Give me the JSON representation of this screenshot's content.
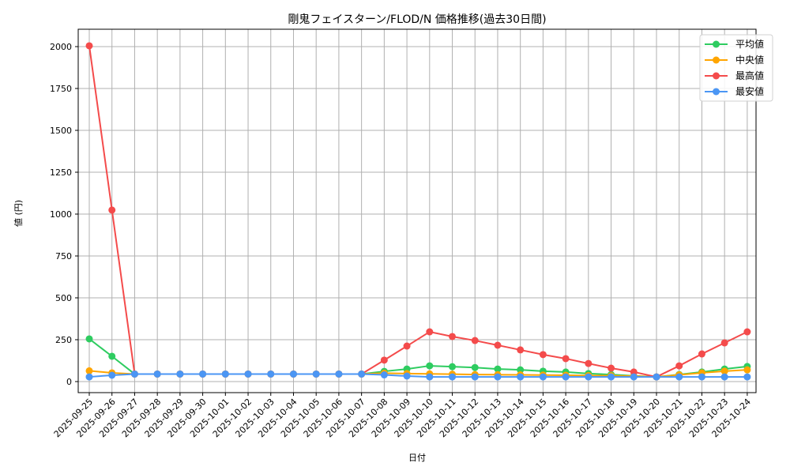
{
  "chart_data": {
    "type": "line",
    "title": "剛鬼フェイスターン/FLOD/N 価格推移(過去30日間)",
    "xlabel": "日付",
    "ylabel": "値 (円)",
    "ylim": [
      -70,
      2105
    ],
    "yticks": [
      0,
      250,
      500,
      750,
      1000,
      1250,
      1500,
      1750,
      2000
    ],
    "grid": true,
    "legend_position": "upper right",
    "categories": [
      "2025-09-25",
      "2025-09-26",
      "2025-09-27",
      "2025-09-28",
      "2025-09-29",
      "2025-09-30",
      "2025-10-01",
      "2025-10-02",
      "2025-10-03",
      "2025-10-04",
      "2025-10-05",
      "2025-10-06",
      "2025-10-07",
      "2025-10-08",
      "2025-10-09",
      "2025-10-10",
      "2025-10-11",
      "2025-10-12",
      "2025-10-13",
      "2025-10-14",
      "2025-10-15",
      "2025-10-16",
      "2025-10-17",
      "2025-10-18",
      "2025-10-19",
      "2025-10-20",
      "2025-10-21",
      "2025-10-22",
      "2025-10-23",
      "2025-10-24"
    ],
    "series": [
      {
        "name": "平均値",
        "color": "#2ecc60",
        "values": [
          255,
          151,
          45,
          45,
          45,
          45,
          45,
          45,
          45,
          45,
          45,
          45,
          45,
          61,
          75,
          94,
          89,
          84,
          75,
          70,
          62,
          57,
          48,
          42,
          34,
          28,
          42,
          57,
          75,
          90
        ]
      },
      {
        "name": "中央値",
        "color": "#ffa500",
        "values": [
          64,
          52,
          45,
          45,
          45,
          45,
          45,
          45,
          45,
          45,
          45,
          45,
          45,
          50,
          48,
          46,
          44,
          42,
          41,
          40,
          39,
          38,
          36,
          35,
          33,
          28,
          40,
          52,
          62,
          70
        ]
      },
      {
        "name": "最高値",
        "color": "#f44b4b",
        "values": [
          2005,
          1024,
          45,
          45,
          45,
          45,
          45,
          45,
          45,
          45,
          45,
          45,
          45,
          128,
          212,
          297,
          269,
          245,
          217,
          189,
          161,
          137,
          108,
          80,
          57,
          28,
          94,
          165,
          231,
          297
        ]
      },
      {
        "name": "最安値",
        "color": "#4b96f4",
        "values": [
          28,
          38,
          45,
          45,
          45,
          45,
          45,
          45,
          45,
          45,
          45,
          45,
          45,
          40,
          33,
          28,
          28,
          28,
          28,
          28,
          28,
          28,
          28,
          28,
          28,
          28,
          28,
          28,
          28,
          28
        ]
      }
    ]
  }
}
